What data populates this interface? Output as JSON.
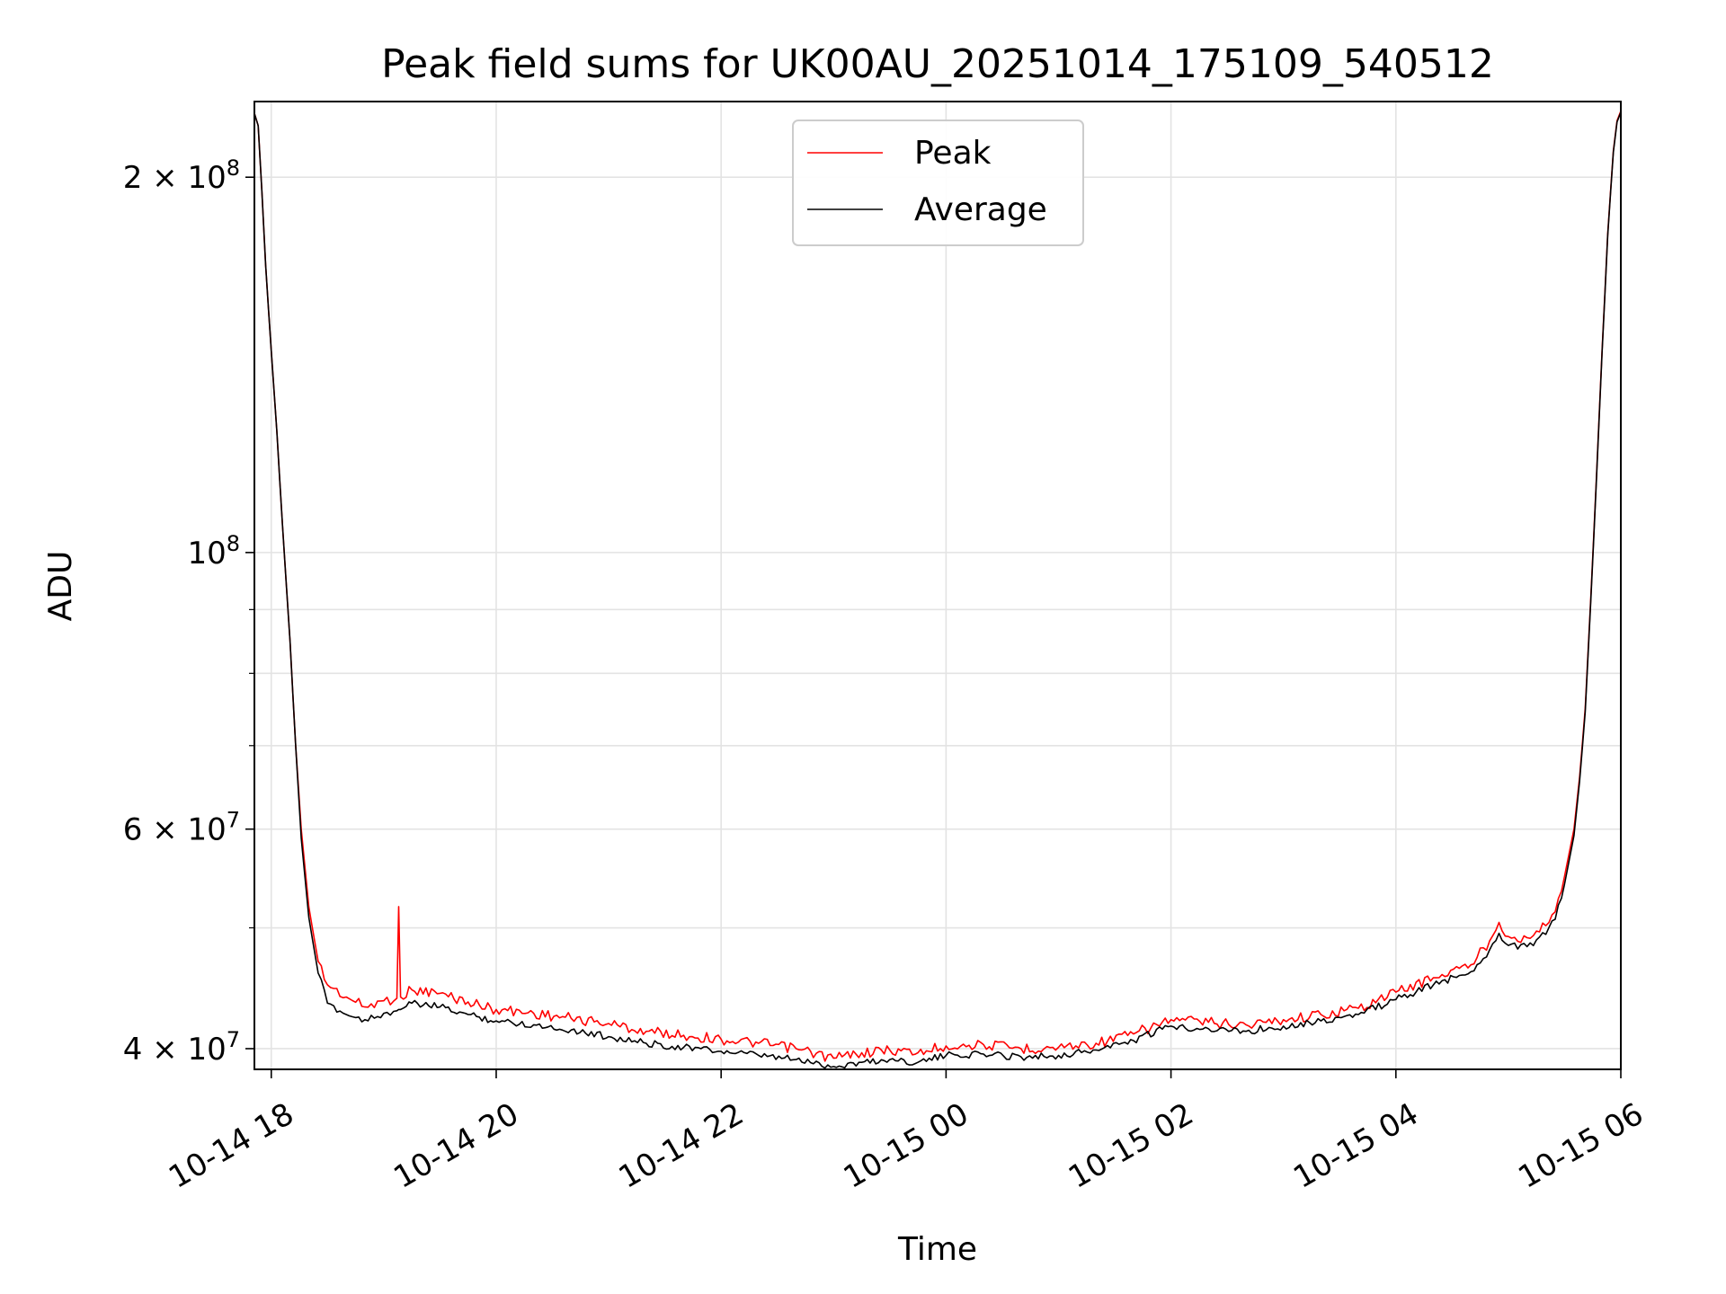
{
  "chart_data": {
    "type": "line",
    "title": "Peak field sums for UK00AU_20251014_175109_540512",
    "xlabel": "Time",
    "ylabel": "ADU",
    "y_scale": "log",
    "grid": true,
    "legend_position": "top-center",
    "xlim": [
      "2025-10-14 17:51",
      "2025-10-15 06:00"
    ],
    "ylim": [
      38500000,
      230000000
    ],
    "x_tick_labels": [
      "10-14 18",
      "10-14 20",
      "10-14 22",
      "10-15 00",
      "10-15 02",
      "10-15 04",
      "10-15 06"
    ],
    "x_tick_times": [
      "2025-10-14 18:00",
      "2025-10-14 20:00",
      "2025-10-14 22:00",
      "2025-10-15 00:00",
      "2025-10-15 02:00",
      "2025-10-15 04:00",
      "2025-10-15 06:00"
    ],
    "y_ticks": [
      {
        "value": 200000000,
        "mantissa": "2",
        "base": "10",
        "exp": "8"
      },
      {
        "value": 100000000,
        "mantissa": "",
        "base": "10",
        "exp": "8"
      },
      {
        "value": 60000000,
        "mantissa": "6",
        "base": "10",
        "exp": "7"
      },
      {
        "value": 40000000,
        "mantissa": "4",
        "base": "10",
        "exp": "7"
      }
    ],
    "y_minor_ticks": [
      50000000,
      70000000,
      80000000,
      90000000
    ],
    "series": [
      {
        "name": "Peak",
        "color": "#ff0000",
        "points": [
          [
            "2025-10-14 17:51",
            225000000
          ],
          [
            "2025-10-14 17:53",
            220000000
          ],
          [
            "2025-10-14 17:55",
            195000000
          ],
          [
            "2025-10-14 17:57",
            170000000
          ],
          [
            "2025-10-14 18:00",
            145000000
          ],
          [
            "2025-10-14 18:03",
            125000000
          ],
          [
            "2025-10-14 18:06",
            105000000
          ],
          [
            "2025-10-14 18:10",
            85000000
          ],
          [
            "2025-10-14 18:13",
            70000000
          ],
          [
            "2025-10-14 18:16",
            60000000
          ],
          [
            "2025-10-14 18:20",
            52000000
          ],
          [
            "2025-10-14 18:25",
            47000000
          ],
          [
            "2025-10-14 18:30",
            45000000
          ],
          [
            "2025-10-14 18:40",
            44000000
          ],
          [
            "2025-10-14 18:50",
            43200000
          ],
          [
            "2025-10-14 19:00",
            43700000
          ],
          [
            "2025-10-14 19:07",
            43900000
          ],
          [
            "2025-10-14 19:08",
            52000000
          ],
          [
            "2025-10-14 19:09",
            44000000
          ],
          [
            "2025-10-14 19:15",
            44600000
          ],
          [
            "2025-10-14 19:30",
            44300000
          ],
          [
            "2025-10-14 19:45",
            43600000
          ],
          [
            "2025-10-14 20:00",
            43000000
          ],
          [
            "2025-10-14 20:20",
            42700000
          ],
          [
            "2025-10-14 20:40",
            42300000
          ],
          [
            "2025-10-14 21:00",
            41900000
          ],
          [
            "2025-10-14 21:20",
            41300000
          ],
          [
            "2025-10-14 21:40",
            41000000
          ],
          [
            "2025-10-14 22:00",
            40700000
          ],
          [
            "2025-10-14 22:20",
            40400000
          ],
          [
            "2025-10-14 22:40",
            40000000
          ],
          [
            "2025-10-14 23:00",
            39300000
          ],
          [
            "2025-10-14 23:15",
            39700000
          ],
          [
            "2025-10-14 23:30",
            39900000
          ],
          [
            "2025-10-14 23:45",
            39700000
          ],
          [
            "2025-10-15 00:00",
            40200000
          ],
          [
            "2025-10-15 00:20",
            40300000
          ],
          [
            "2025-10-15 00:40",
            40000000
          ],
          [
            "2025-10-15 01:00",
            40100000
          ],
          [
            "2025-10-15 01:20",
            40400000
          ],
          [
            "2025-10-15 01:40",
            41100000
          ],
          [
            "2025-10-15 02:00",
            42200000
          ],
          [
            "2025-10-15 02:20",
            42000000
          ],
          [
            "2025-10-15 02:40",
            41800000
          ],
          [
            "2025-10-15 03:00",
            42200000
          ],
          [
            "2025-10-15 03:20",
            42600000
          ],
          [
            "2025-10-15 03:40",
            43100000
          ],
          [
            "2025-10-15 04:00",
            44400000
          ],
          [
            "2025-10-15 04:20",
            45600000
          ],
          [
            "2025-10-15 04:40",
            46700000
          ],
          [
            "2025-10-15 04:50",
            48800000
          ],
          [
            "2025-10-15 04:55",
            50500000
          ],
          [
            "2025-10-15 05:00",
            49200000
          ],
          [
            "2025-10-15 05:10",
            49100000
          ],
          [
            "2025-10-15 05:15",
            49700000
          ],
          [
            "2025-10-15 05:20",
            50200000
          ],
          [
            "2025-10-15 05:25",
            51500000
          ],
          [
            "2025-10-15 05:30",
            55000000
          ],
          [
            "2025-10-15 05:35",
            60000000
          ],
          [
            "2025-10-15 05:38",
            66000000
          ],
          [
            "2025-10-15 05:41",
            75000000
          ],
          [
            "2025-10-15 05:44",
            92000000
          ],
          [
            "2025-10-15 05:47",
            115000000
          ],
          [
            "2025-10-15 05:50",
            145000000
          ],
          [
            "2025-10-15 05:53",
            180000000
          ],
          [
            "2025-10-15 05:56",
            210000000
          ],
          [
            "2025-10-15 05:58",
            222000000
          ],
          [
            "2025-10-15 06:00",
            226000000
          ]
        ]
      },
      {
        "name": "Average",
        "color": "#000000",
        "points": [
          [
            "2025-10-14 17:51",
            225000000
          ],
          [
            "2025-10-14 17:53",
            220000000
          ],
          [
            "2025-10-14 17:55",
            195000000
          ],
          [
            "2025-10-14 17:57",
            170000000
          ],
          [
            "2025-10-14 18:00",
            145000000
          ],
          [
            "2025-10-14 18:03",
            125000000
          ],
          [
            "2025-10-14 18:06",
            105000000
          ],
          [
            "2025-10-14 18:10",
            85000000
          ],
          [
            "2025-10-14 18:13",
            70000000
          ],
          [
            "2025-10-14 18:16",
            59000000
          ],
          [
            "2025-10-14 18:20",
            51000000
          ],
          [
            "2025-10-14 18:25",
            46000000
          ],
          [
            "2025-10-14 18:30",
            43500000
          ],
          [
            "2025-10-14 18:40",
            42600000
          ],
          [
            "2025-10-14 18:50",
            42200000
          ],
          [
            "2025-10-14 19:00",
            42700000
          ],
          [
            "2025-10-14 19:07",
            42900000
          ],
          [
            "2025-10-14 19:08",
            43000000
          ],
          [
            "2025-10-14 19:09",
            43000000
          ],
          [
            "2025-10-14 19:15",
            43500000
          ],
          [
            "2025-10-14 19:30",
            43200000
          ],
          [
            "2025-10-14 19:45",
            42600000
          ],
          [
            "2025-10-14 20:00",
            42100000
          ],
          [
            "2025-10-14 20:20",
            41800000
          ],
          [
            "2025-10-14 20:40",
            41400000
          ],
          [
            "2025-10-14 21:00",
            40900000
          ],
          [
            "2025-10-14 21:20",
            40400000
          ],
          [
            "2025-10-14 21:40",
            40100000
          ],
          [
            "2025-10-14 22:00",
            39800000
          ],
          [
            "2025-10-14 22:20",
            39500000
          ],
          [
            "2025-10-14 22:40",
            39200000
          ],
          [
            "2025-10-14 23:00",
            38700000
          ],
          [
            "2025-10-14 23:15",
            39000000
          ],
          [
            "2025-10-14 23:30",
            39200000
          ],
          [
            "2025-10-14 23:45",
            39000000
          ],
          [
            "2025-10-15 00:00",
            39500000
          ],
          [
            "2025-10-15 00:20",
            39600000
          ],
          [
            "2025-10-15 00:40",
            39400000
          ],
          [
            "2025-10-15 01:00",
            39500000
          ],
          [
            "2025-10-15 01:20",
            39900000
          ],
          [
            "2025-10-15 01:40",
            40600000
          ],
          [
            "2025-10-15 02:00",
            41700000
          ],
          [
            "2025-10-15 02:20",
            41500000
          ],
          [
            "2025-10-15 02:40",
            41300000
          ],
          [
            "2025-10-15 03:00",
            41700000
          ],
          [
            "2025-10-15 03:20",
            42100000
          ],
          [
            "2025-10-15 03:40",
            42600000
          ],
          [
            "2025-10-15 04:00",
            43800000
          ],
          [
            "2025-10-15 04:20",
            45000000
          ],
          [
            "2025-10-15 04:40",
            46100000
          ],
          [
            "2025-10-15 04:50",
            48000000
          ],
          [
            "2025-10-15 04:55",
            49500000
          ],
          [
            "2025-10-15 05:00",
            48400000
          ],
          [
            "2025-10-15 05:10",
            48300000
          ],
          [
            "2025-10-15 05:15",
            48900000
          ],
          [
            "2025-10-15 05:20",
            49400000
          ],
          [
            "2025-10-15 05:25",
            50800000
          ],
          [
            "2025-10-15 05:30",
            54200000
          ],
          [
            "2025-10-15 05:35",
            59300000
          ],
          [
            "2025-10-15 05:38",
            65500000
          ],
          [
            "2025-10-15 05:41",
            74500000
          ],
          [
            "2025-10-15 05:44",
            91500000
          ],
          [
            "2025-10-15 05:47",
            114500000
          ],
          [
            "2025-10-15 05:50",
            144500000
          ],
          [
            "2025-10-15 05:53",
            179500000
          ],
          [
            "2025-10-15 05:56",
            209500000
          ],
          [
            "2025-10-15 05:58",
            221500000
          ],
          [
            "2025-10-15 06:00",
            225500000
          ]
        ]
      }
    ]
  }
}
